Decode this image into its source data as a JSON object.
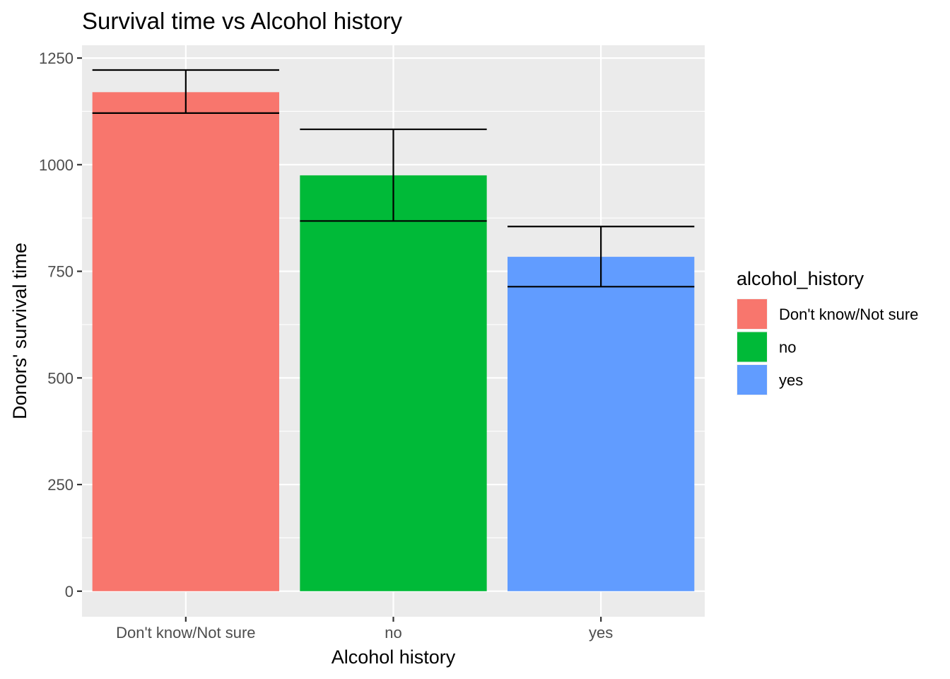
{
  "chart_data": {
    "type": "bar",
    "title": "Survival time vs Alcohol history",
    "xlabel": "Alcohol history",
    "ylabel": "Donors' survival time",
    "categories": [
      "Don't know/Not sure",
      "no",
      "yes"
    ],
    "values": [
      1170,
      975,
      784
    ],
    "error_bars": [
      {
        "lower": 1121,
        "upper": 1222
      },
      {
        "lower": 868,
        "upper": 1083
      },
      {
        "lower": 714,
        "upper": 855
      }
    ],
    "colors": [
      "#F8766D",
      "#00BA38",
      "#619CFF"
    ],
    "ylim": [
      -60,
      1280
    ],
    "yticks": [
      0,
      250,
      500,
      750,
      1000,
      1250
    ],
    "grid": true,
    "panel_background": "#EBEBEB",
    "legend": {
      "title": "alcohol_history",
      "position": "right",
      "entries": [
        "Don't know/Not sure",
        "no",
        "yes"
      ]
    }
  }
}
